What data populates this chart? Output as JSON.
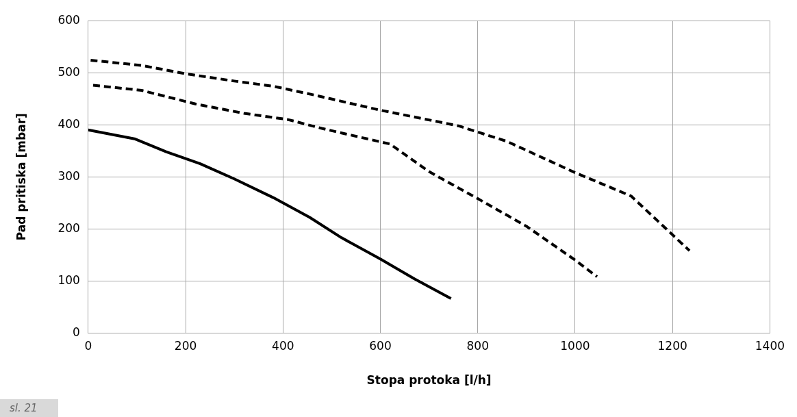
{
  "chart_data": {
    "type": "line",
    "xlabel": "Stopa protoka [l/h]",
    "ylabel": "Pad pritiska [mbar]",
    "xlim": [
      0,
      1400
    ],
    "xticks": [
      0,
      200,
      400,
      600,
      800,
      1000,
      1200,
      1400
    ],
    "ylim": [
      0,
      600
    ],
    "yticks": [
      0,
      100,
      200,
      300,
      400,
      500,
      600
    ],
    "grid": true,
    "legend": false,
    "marker": "none",
    "annotations": [
      "sl. 21"
    ],
    "series": [
      {
        "color": "#000000",
        "line_style": "solid",
        "x": [
          0,
          95,
          160,
          230,
          300,
          380,
          455,
          520,
          600,
          670,
          745
        ],
        "values": [
          390,
          373,
          348,
          325,
          296,
          260,
          222,
          183,
          142,
          104,
          66
        ]
      },
      {
        "color": "#000000",
        "line_style": "dashed",
        "x": [
          10,
          110,
          220,
          320,
          410,
          480,
          540,
          620,
          700,
          800,
          900,
          1000,
          1045
        ],
        "values": [
          476,
          466,
          440,
          422,
          410,
          393,
          380,
          363,
          310,
          258,
          205,
          140,
          108
        ]
      },
      {
        "color": "#000000",
        "line_style": "dashed",
        "x": [
          5,
          110,
          200,
          300,
          380,
          460,
          600,
          760,
          860,
          1000,
          1115,
          1235
        ],
        "values": [
          524,
          514,
          498,
          484,
          474,
          458,
          428,
          398,
          368,
          308,
          263,
          158
        ]
      }
    ]
  }
}
